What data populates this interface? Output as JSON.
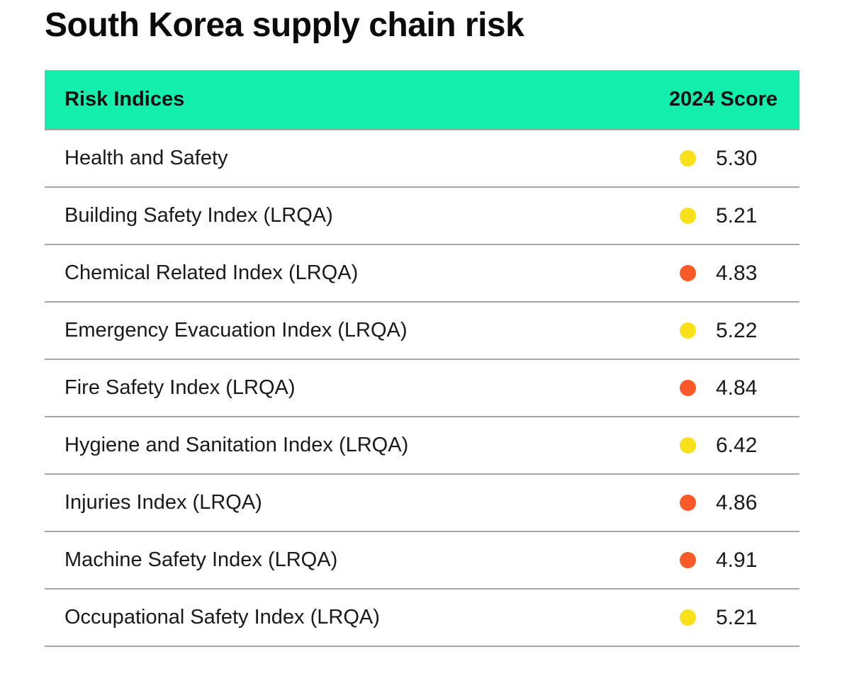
{
  "title": "South Korea supply chain risk",
  "colors": {
    "header_bg": "#12EFAD",
    "divider": "#A6A6A6",
    "yellow_dot": "#F8E11A",
    "orange_dot": "#F95A28"
  },
  "chart_data": {
    "type": "table",
    "title": "South Korea supply chain risk",
    "columns": [
      "Risk Indices",
      "2024 Score"
    ],
    "rows": [
      {
        "label": "Health and Safety",
        "score": "5.30",
        "dot": "yellow"
      },
      {
        "label": "Building Safety Index (LRQA)",
        "score": "5.21",
        "dot": "yellow"
      },
      {
        "label": "Chemical Related Index (LRQA)",
        "score": "4.83",
        "dot": "orange"
      },
      {
        "label": "Emergency Evacuation Index (LRQA)",
        "score": "5.22",
        "dot": "yellow"
      },
      {
        "label": "Fire Safety Index (LRQA)",
        "score": "4.84",
        "dot": "orange"
      },
      {
        "label": "Hygiene and Sanitation Index (LRQA)",
        "score": "6.42",
        "dot": "yellow"
      },
      {
        "label": "Injuries Index (LRQA)",
        "score": "4.86",
        "dot": "orange"
      },
      {
        "label": "Machine Safety Index (LRQA)",
        "score": "4.91",
        "dot": "orange"
      },
      {
        "label": "Occupational Safety Index (LRQA)",
        "score": "5.21",
        "dot": "yellow"
      }
    ],
    "values": [
      5.3,
      5.21,
      4.83,
      5.22,
      4.84,
      6.42,
      4.86,
      4.91,
      5.21
    ]
  }
}
